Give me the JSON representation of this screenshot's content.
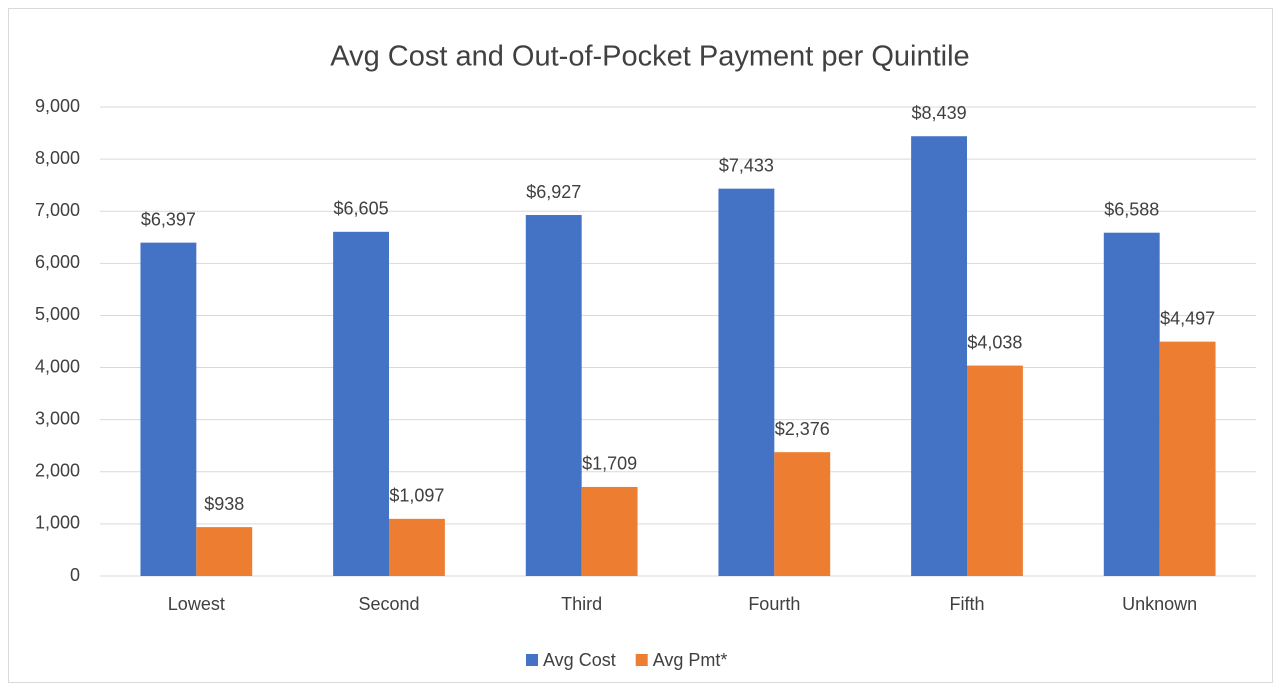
{
  "chart_data": {
    "type": "bar",
    "title": "Avg Cost and Out-of-Pocket Payment per Quintile",
    "categories": [
      "Lowest",
      "Second",
      "Third",
      "Fourth",
      "Fifth",
      "Unknown"
    ],
    "series": [
      {
        "name": "Avg Cost",
        "color": "#4472c4",
        "values": [
          6397,
          6605,
          6927,
          7433,
          8439,
          6588
        ],
        "value_labels": [
          "$6,397",
          "$6,605",
          "$6,927",
          "$7,433",
          "$8,439",
          "$6,588"
        ]
      },
      {
        "name": "Avg Pmt*",
        "color": "#ed7d31",
        "values": [
          938,
          1097,
          1709,
          2376,
          4038,
          4497
        ],
        "value_labels": [
          "$938",
          "$1,097",
          "$1,709",
          "$2,376",
          "$4,038",
          "$4,497"
        ]
      }
    ],
    "ylim": [
      0,
      9000
    ],
    "yticks": [
      0,
      {
        "value": 1000,
        "label": "1,000"
      },
      {
        "value": 2000,
        "label": "2,000"
      },
      {
        "value": 3000,
        "label": "3,000"
      },
      {
        "value": 4000,
        "label": "4,000"
      },
      {
        "value": 5000,
        "label": "5,000"
      },
      {
        "value": 6000,
        "label": "6,000"
      },
      {
        "value": 7000,
        "label": "7,000"
      },
      {
        "value": 8000,
        "label": "8,000"
      },
      {
        "value": 9000,
        "label": "9,000"
      }
    ],
    "grid": true,
    "legend": "bottom"
  }
}
